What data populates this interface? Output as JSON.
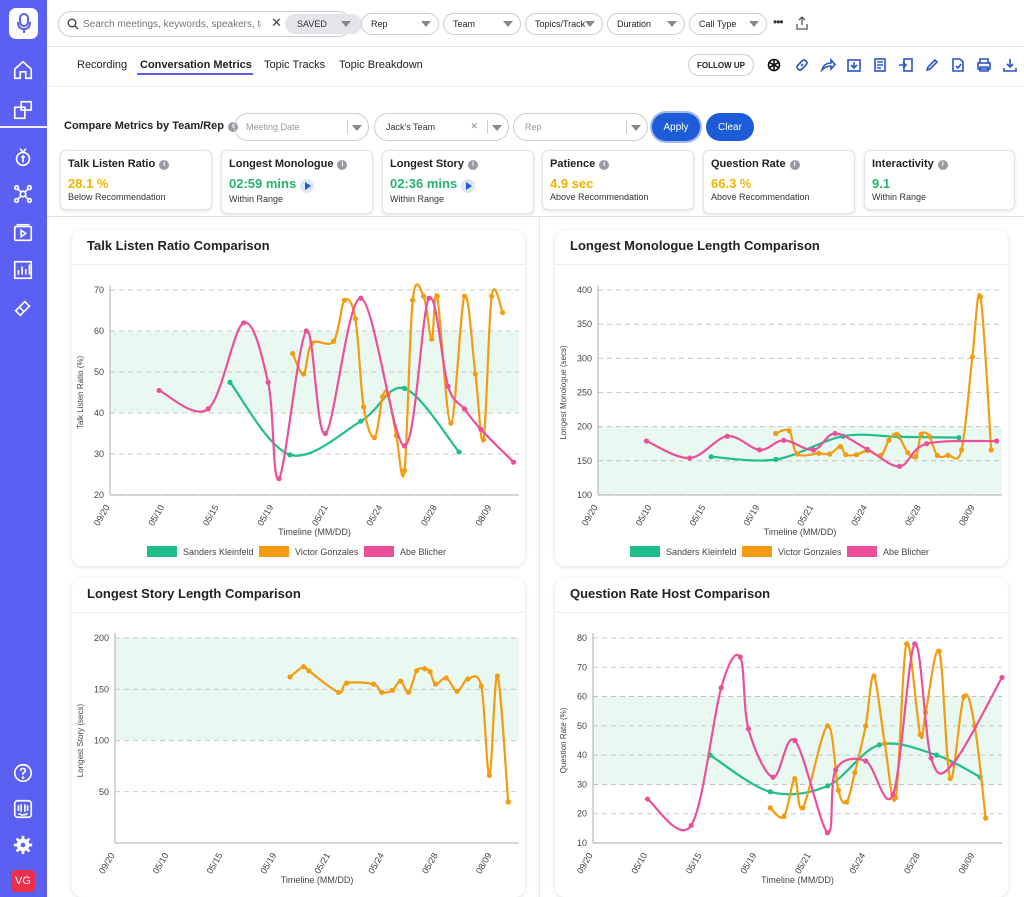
{
  "sidebar": {
    "icons": [
      "microphone-logo-icon",
      "home-icon",
      "meetings-icon",
      "deals-icon",
      "integrations-icon",
      "playlist-icon",
      "analytics-icon",
      "coaching-icon",
      "help-icon",
      "intercom-icon",
      "settings-icon"
    ],
    "avatar_initials": "VG",
    "accent": "#5b5ff2"
  },
  "filters": {
    "search_placeholder": "Search meetings, keywords, speakers, top",
    "saved_label": "SAVED",
    "rep": "Rep",
    "team": "Team",
    "topics": "Topics/Track",
    "duration": "Duration",
    "call_type": "Call Type",
    "more": "•••"
  },
  "tabs": [
    {
      "label": "Recording",
      "active": false
    },
    {
      "label": "Conversation Metrics",
      "active": true
    },
    {
      "label": "Topic Tracks",
      "active": false
    },
    {
      "label": "Topic Breakdown",
      "active": false
    }
  ],
  "actions": {
    "follow_up": "FOLLOW UP",
    "icons": [
      "openai-icon",
      "link-icon",
      "share-icon",
      "export-icon",
      "notes-icon",
      "crm-icon",
      "edit-icon",
      "document-icon",
      "print-icon",
      "download-icon"
    ]
  },
  "compare": {
    "label": "Compare Metrics by Team/Rep",
    "meeting_date_placeholder": "Meeting Date",
    "team_value": "Jack's Team",
    "rep_placeholder": "Rep",
    "apply": "Apply",
    "clear": "Clear"
  },
  "metrics": [
    {
      "title": "Talk Listen Ratio",
      "value": "28.1 %",
      "status": "Below Recommendation",
      "color": "#f0b400",
      "play": false
    },
    {
      "title": "Longest Monologue",
      "value": "02:59 mins",
      "status": "Within Range",
      "color": "#27b36f",
      "play": true
    },
    {
      "title": "Longest Story",
      "value": "02:36 mins",
      "status": "Within Range",
      "color": "#27b36f",
      "play": true
    },
    {
      "title": "Patience",
      "value": "4.9 sec",
      "status": "Above Recommendation",
      "color": "#f0b400",
      "play": false
    },
    {
      "title": "Question Rate",
      "value": "66.3 %",
      "status": "Above Recommendation",
      "color": "#f0b400",
      "play": false
    },
    {
      "title": "Interactivity",
      "value": "9.1",
      "status": "Within Range",
      "color": "#27b36f",
      "play": false
    }
  ],
  "series_colors": {
    "Sanders Kleinfeld": "#1fbe8c",
    "Victor Gonzales": "#f39c12",
    "Abe Blicher": "#ec4f9a"
  },
  "chart_data": [
    {
      "type": "line",
      "title": "Talk Listen Ratio Comparison",
      "xlabel": "Timeline (MM/DD)",
      "ylabel": "Talk Listen Ratio (%)",
      "x_ticks": [
        "09/20",
        "05/10",
        "05/15",
        "05/19",
        "05/21",
        "05/24",
        "05/28",
        "08/09"
      ],
      "ylim": [
        20,
        70
      ],
      "y_ticks": [
        20,
        30,
        40,
        50,
        60,
        70
      ],
      "band": [
        40,
        60
      ],
      "legend": [
        "Sanders Kleinfeld",
        "Victor Gonzales",
        "Abe Blicher"
      ],
      "series": [
        {
          "name": "Sanders Kleinfeld",
          "points": [
            [
              2.2,
              47.5
            ],
            [
              3.3,
              29.8
            ],
            [
              4.6,
              38
            ],
            [
              5.4,
              46
            ],
            [
              6.4,
              30.5
            ]
          ]
        },
        {
          "name": "Victor Gonzales",
          "points": [
            [
              3.35,
              54.5
            ],
            [
              3.55,
              49.5
            ],
            [
              3.7,
              57
            ],
            [
              4.1,
              57.5
            ],
            [
              4.3,
              67.5
            ],
            [
              4.5,
              63
            ],
            [
              4.65,
              41.5
            ],
            [
              4.85,
              34
            ],
            [
              5.0,
              44
            ],
            [
              5.1,
              44.5
            ],
            [
              5.25,
              34.5
            ],
            [
              5.4,
              26
            ],
            [
              5.55,
              67.5
            ],
            [
              5.75,
              68.5
            ],
            [
              5.9,
              58
            ],
            [
              6.0,
              68.5
            ],
            [
              6.25,
              37.5
            ],
            [
              6.5,
              68.5
            ],
            [
              6.7,
              49.5
            ],
            [
              6.85,
              33.5
            ],
            [
              7.0,
              68.5
            ],
            [
              7.2,
              64.5
            ]
          ]
        },
        {
          "name": "Abe Blicher",
          "points": [
            [
              0.9,
              45.5
            ],
            [
              1.8,
              41
            ],
            [
              2.45,
              62
            ],
            [
              2.9,
              47.5
            ],
            [
              3.1,
              24
            ],
            [
              3.6,
              60
            ],
            [
              3.95,
              35
            ],
            [
              4.6,
              68
            ],
            [
              5.4,
              32
            ],
            [
              5.85,
              68
            ],
            [
              6.2,
              46.5
            ],
            [
              6.5,
              41
            ],
            [
              6.8,
              36
            ],
            [
              7.4,
              28
            ]
          ]
        }
      ]
    },
    {
      "type": "line",
      "title": "Longest Monologue Length Comparison",
      "xlabel": "Timeline (MM/DD)",
      "ylabel": "Longest Monologue (secs)",
      "x_ticks": [
        "09/20",
        "05/10",
        "05/15",
        "05/19",
        "05/21",
        "05/24",
        "05/28",
        "08/09"
      ],
      "ylim": [
        100,
        400
      ],
      "y_ticks": [
        100,
        150,
        200,
        250,
        300,
        350,
        400
      ],
      "band": [
        100,
        200
      ],
      "legend": [
        "Sanders Kleinfeld",
        "Victor Gonzales",
        "Abe Blicher"
      ],
      "series": [
        {
          "name": "Sanders Kleinfeld",
          "points": [
            [
              2.1,
              156
            ],
            [
              3.3,
              152
            ],
            [
              4.55,
              186
            ],
            [
              5.6,
              185
            ],
            [
              6.7,
              184
            ]
          ]
        },
        {
          "name": "Victor Gonzales",
          "points": [
            [
              3.3,
              190
            ],
            [
              3.55,
              194
            ],
            [
              3.7,
              160
            ],
            [
              4.1,
              161
            ],
            [
              4.3,
              160
            ],
            [
              4.5,
              171
            ],
            [
              4.6,
              159
            ],
            [
              4.8,
              159
            ],
            [
              5.0,
              165
            ],
            [
              5.25,
              158
            ],
            [
              5.4,
              180
            ],
            [
              5.55,
              189
            ],
            [
              5.75,
              162
            ],
            [
              5.9,
              156
            ],
            [
              6.0,
              189
            ],
            [
              6.15,
              186
            ],
            [
              6.3,
              158
            ],
            [
              6.5,
              158
            ],
            [
              6.75,
              166
            ],
            [
              6.95,
              302
            ],
            [
              7.1,
              390
            ],
            [
              7.3,
              166
            ]
          ]
        },
        {
          "name": "Abe Blicher",
          "points": [
            [
              0.9,
              179
            ],
            [
              1.7,
              154
            ],
            [
              2.4,
              186
            ],
            [
              3.0,
              166
            ],
            [
              3.45,
              180
            ],
            [
              4.0,
              166
            ],
            [
              4.4,
              190
            ],
            [
              5.0,
              167
            ],
            [
              5.6,
              142
            ],
            [
              6.1,
              175
            ],
            [
              7.4,
              179
            ]
          ]
        }
      ]
    },
    {
      "type": "line",
      "title": "Longest Story Length Comparison",
      "xlabel": "Timeline (MM/DD)",
      "ylabel": "Longest Story (secs)",
      "x_ticks": [
        "09/20",
        "05/10",
        "05/15",
        "05/19",
        "05/21",
        "05/24",
        "05/28",
        "08/09"
      ],
      "ylim": [
        0,
        200
      ],
      "y_ticks": [
        50,
        100,
        150,
        200
      ],
      "band": [
        100,
        200
      ],
      "legend": [],
      "series": [
        {
          "name": "Victor Gonzales",
          "points": [
            [
              3.25,
              162
            ],
            [
              3.5,
              172
            ],
            [
              3.6,
              168
            ],
            [
              4.15,
              147
            ],
            [
              4.3,
              156
            ],
            [
              4.8,
              155
            ],
            [
              4.95,
              147
            ],
            [
              5.15,
              149
            ],
            [
              5.3,
              158
            ],
            [
              5.45,
              147
            ],
            [
              5.6,
              168
            ],
            [
              5.75,
              170
            ],
            [
              5.85,
              167
            ],
            [
              5.95,
              155
            ],
            [
              6.15,
              161
            ],
            [
              6.35,
              148
            ],
            [
              6.55,
              160
            ],
            [
              6.8,
              153
            ],
            [
              6.95,
              66
            ],
            [
              7.1,
              163
            ],
            [
              7.3,
              40
            ]
          ]
        }
      ]
    },
    {
      "type": "line",
      "title": "Question Rate Host Comparison",
      "xlabel": "Timeline (MM/DD)",
      "ylabel": "Question Rate (%)",
      "x_ticks": [
        "09/20",
        "05/10",
        "05/15",
        "05/19",
        "05/21",
        "05/24",
        "05/28",
        "08/09"
      ],
      "ylim": [
        10,
        80
      ],
      "y_ticks": [
        10,
        20,
        30,
        40,
        50,
        60,
        70,
        80
      ],
      "band": [
        30,
        60
      ],
      "legend": [],
      "series": [
        {
          "name": "Sanders Kleinfeld",
          "points": [
            [
              2.15,
              40
            ],
            [
              3.25,
              27.5
            ],
            [
              4.3,
              29.5
            ],
            [
              5.25,
              43.5
            ],
            [
              6.3,
              40
            ],
            [
              7.1,
              32.5
            ]
          ]
        },
        {
          "name": "Victor Gonzales",
          "points": [
            [
              3.25,
              22
            ],
            [
              3.5,
              19
            ],
            [
              3.7,
              32
            ],
            [
              3.85,
              22
            ],
            [
              4.3,
              50
            ],
            [
              4.5,
              28
            ],
            [
              4.65,
              24
            ],
            [
              4.8,
              34
            ],
            [
              5.0,
              50
            ],
            [
              5.15,
              67
            ],
            [
              5.35,
              44
            ],
            [
              5.55,
              25.5
            ],
            [
              5.75,
              78
            ],
            [
              6.0,
              47
            ],
            [
              6.1,
              54.5
            ],
            [
              6.35,
              75.5
            ],
            [
              6.55,
              32
            ],
            [
              6.8,
              60
            ],
            [
              7.0,
              50
            ],
            [
              7.2,
              18.5
            ]
          ]
        },
        {
          "name": "Abe Blicher",
          "points": [
            [
              1.0,
              25
            ],
            [
              1.8,
              16
            ],
            [
              2.35,
              63
            ],
            [
              2.7,
              73.5
            ],
            [
              2.85,
              49
            ],
            [
              3.3,
              32.5
            ],
            [
              3.7,
              45
            ],
            [
              4.3,
              13.5
            ],
            [
              4.45,
              35
            ],
            [
              5.0,
              38
            ],
            [
              5.5,
              26.5
            ],
            [
              5.9,
              78
            ],
            [
              6.2,
              39
            ],
            [
              6.6,
              37
            ],
            [
              7.5,
              66.5
            ]
          ]
        }
      ]
    }
  ]
}
